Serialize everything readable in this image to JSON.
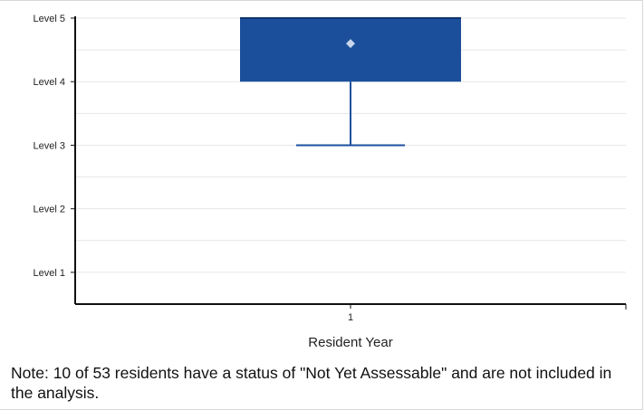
{
  "chart_data": {
    "type": "box",
    "categories": [
      "1"
    ],
    "y_tick_labels": [
      "Level 1",
      "Level 2",
      "Level 3",
      "Level 4",
      "Level 5"
    ],
    "y_tick_values": [
      1,
      2,
      3,
      4,
      5
    ],
    "ylim": [
      0.5,
      5
    ],
    "xlabel": "Resident Year",
    "ylabel": "",
    "grid": true,
    "boxes": [
      {
        "category": "1",
        "min": 3,
        "q1": 4,
        "median": 5,
        "q3": 5,
        "max": 5,
        "mean": 4.6
      }
    ],
    "colors": {
      "box": "#1b4f9c",
      "mean_marker": "#c8d6ea",
      "grid": "#e6e6e6",
      "axis": "#111111"
    }
  },
  "note": "Note: 10 of 53 residents have a status of \"Not Yet Assessable\" and are not included in the analysis."
}
